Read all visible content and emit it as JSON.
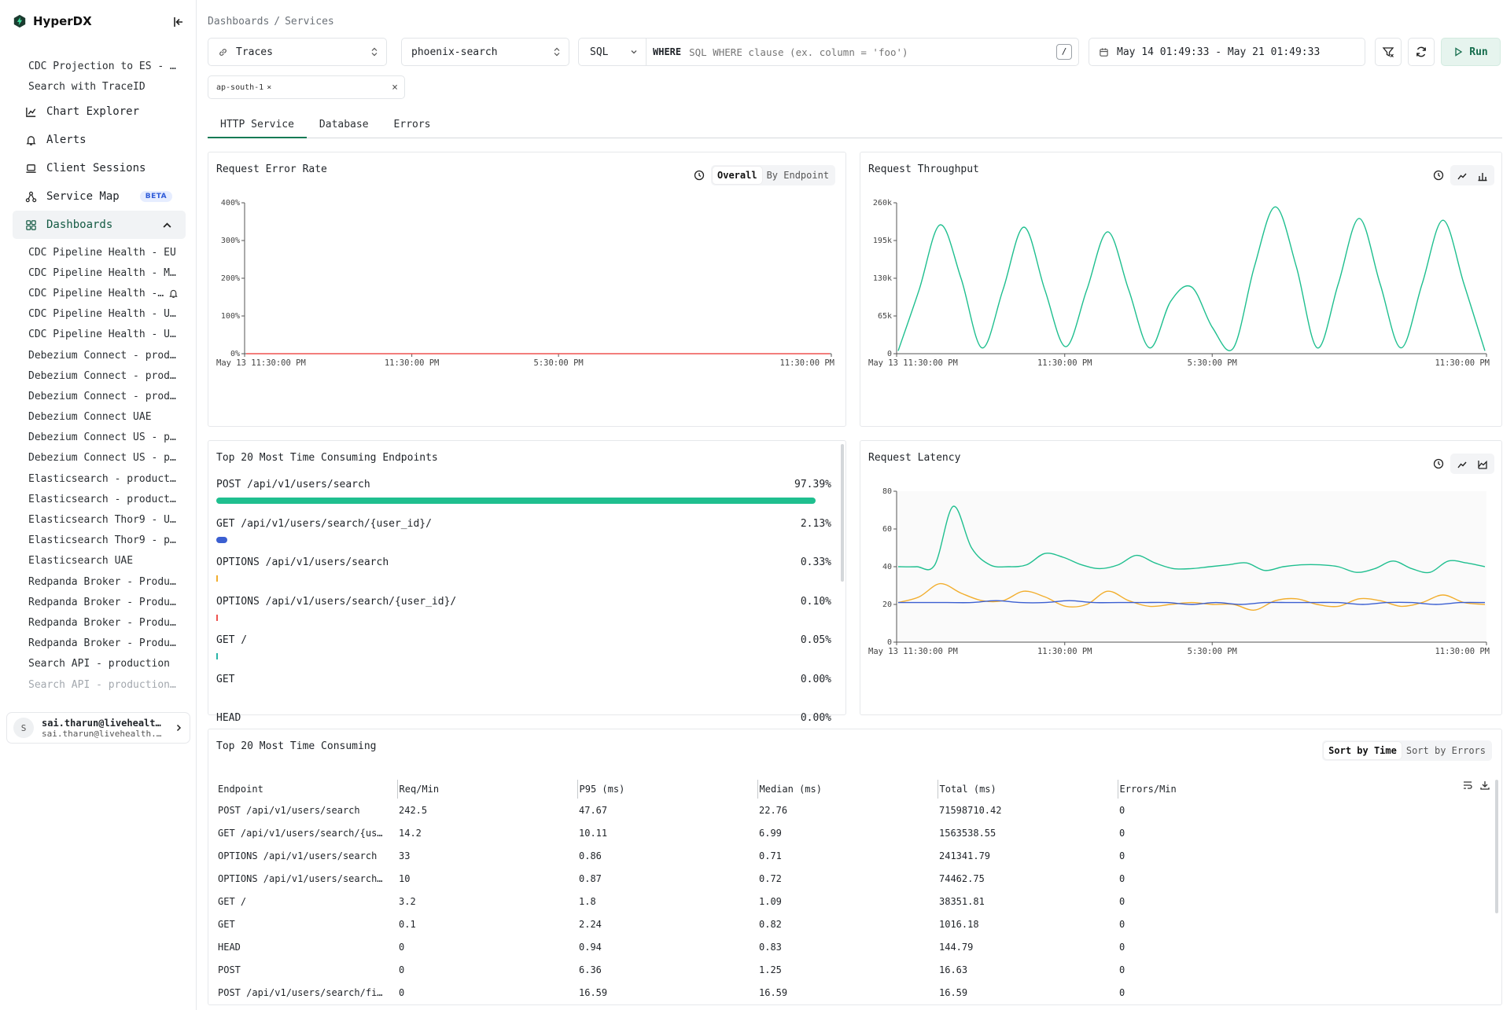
{
  "brand": {
    "name": "HyperDX"
  },
  "sidebar": {
    "saved_searches": [
      "CDC Projection to ES - …",
      "Search with TraceID"
    ],
    "nav": [
      {
        "label": "Chart Explorer",
        "icon": "chart-line-icon"
      },
      {
        "label": "Alerts",
        "icon": "bell-icon"
      },
      {
        "label": "Client Sessions",
        "icon": "laptop-icon"
      },
      {
        "label": "Service Map",
        "icon": "share-nodes-icon",
        "badge": "BETA"
      },
      {
        "label": "Dashboards",
        "icon": "grid-icon",
        "active": true
      }
    ],
    "dashboards": [
      "CDC Pipeline Health - EU",
      "CDC Pipeline Health - M…",
      "CDC Pipeline Health -…",
      "CDC Pipeline Health - U…",
      "CDC Pipeline Health - U…",
      "Debezium Connect - prod…",
      "Debezium Connect - prod…",
      "Debezium Connect - prod…",
      "Debezium Connect UAE",
      "Debezium Connect US - p…",
      "Debezium Connect US - p…",
      "Elasticsearch - product…",
      "Elasticsearch - product…",
      "Elasticsearch Thor9 - U…",
      "Elasticsearch Thor9 - p…",
      "Elasticsearch UAE",
      "Redpanda Broker - Produ…",
      "Redpanda Broker - Produ…",
      "Redpanda Broker - Produ…",
      "Redpanda Broker - Produ…",
      "Search API - production",
      "Search API - production…"
    ],
    "user": {
      "initial": "S",
      "name": "sai.tharun@livehealt…",
      "email": "sai.tharun@livehealth.…"
    }
  },
  "breadcrumb": {
    "root": "Dashboards",
    "sep": "/",
    "current": "Services"
  },
  "toolbar": {
    "source": "Traces",
    "service": "phoenix-search",
    "language": "SQL",
    "where_label": "WHERE",
    "where_placeholder": "SQL WHERE clause (ex. column = 'foo')",
    "slash_hint": "/",
    "date_range": "May 14 01:49:33 - May 21 01:49:33",
    "run_label": "Run",
    "filter_chip": "ap-south-1"
  },
  "tabs": [
    "HTTP Service",
    "Database",
    "Errors"
  ],
  "panels": {
    "error_rate": {
      "title": "Request Error Rate",
      "seg": [
        "Overall",
        "By Endpoint"
      ]
    },
    "throughput": {
      "title": "Request Throughput"
    },
    "endpoints": {
      "title": "Top 20 Most Time Consuming Endpoints"
    },
    "latency": {
      "title": "Request Latency"
    },
    "table": {
      "title": "Top 20 Most Time Consuming",
      "seg": [
        "Sort by Time",
        "Sort by Errors"
      ]
    }
  },
  "colors": {
    "green": "#1fbf8f",
    "blue": "#3b5fd1",
    "orange": "#f2ae2e",
    "red": "#ef5350",
    "teal": "#29b5a8"
  },
  "chart_data": [
    {
      "type": "line",
      "name": "request-error-rate",
      "title": "Request Error Rate",
      "x_ticks": [
        "May 13 11:30:00 PM",
        "11:30:00 PM",
        "5:30:00 PM",
        "11:30:00 PM"
      ],
      "y_ticks": [
        "400%",
        "300%",
        "200%",
        "100%",
        "0%"
      ],
      "ylim": [
        0,
        400
      ],
      "series": [
        {
          "values": [
            0,
            0,
            0,
            0,
            0,
            0,
            0,
            0,
            0,
            0,
            0,
            0,
            0,
            0,
            0,
            0,
            0,
            0,
            0,
            0
          ]
        }
      ]
    },
    {
      "type": "line",
      "name": "request-throughput",
      "title": "Request Throughput",
      "x_ticks": [
        "May 13 11:30:00 PM",
        "11:30:00 PM",
        "5:30:00 PM",
        "11:30:00 PM"
      ],
      "y_ticks": [
        "260k",
        "195k",
        "130k",
        "65k",
        "0"
      ],
      "ylim": [
        0,
        260000
      ],
      "series": [
        {
          "values": [
            5000,
            110000,
            222000,
            130000,
            10000,
            110000,
            218000,
            110000,
            12000,
            110000,
            210000,
            110000,
            10000,
            90000,
            115000,
            45000,
            10000,
            150000,
            253000,
            150000,
            10000,
            120000,
            233000,
            120000,
            10000,
            120000,
            230000,
            120000,
            5000
          ]
        }
      ]
    },
    {
      "type": "line",
      "name": "request-latency",
      "title": "Request Latency",
      "x_ticks": [
        "May 13 11:30:00 PM",
        "11:30:00 PM",
        "5:30:00 PM",
        "11:30:00 PM"
      ],
      "y_ticks": [
        "80",
        "60",
        "40",
        "20",
        "0"
      ],
      "ylim": [
        0,
        80
      ],
      "series": [
        {
          "values": [
            40,
            40,
            41,
            72,
            50,
            41,
            40,
            41,
            47,
            45,
            41,
            39,
            41,
            46,
            42,
            39,
            39,
            40,
            41,
            42,
            38,
            40,
            41,
            41,
            40,
            37,
            39,
            43,
            39,
            37,
            43,
            42,
            40
          ]
        },
        {
          "values": [
            21,
            24,
            31,
            26,
            22,
            22,
            27,
            24,
            19,
            20,
            27,
            22,
            19,
            20,
            21,
            20,
            20,
            17,
            22,
            23,
            20,
            19,
            23,
            22,
            19,
            21,
            25,
            21,
            20
          ]
        },
        {
          "values": [
            21,
            21,
            21,
            21,
            22,
            21,
            21,
            22,
            21,
            21,
            21,
            21,
            20,
            21,
            20,
            21,
            21,
            21,
            21,
            20,
            21,
            21,
            20,
            21,
            21
          ]
        }
      ]
    },
    {
      "type": "bar",
      "name": "top-endpoints",
      "title": "Top 20 Most Time Consuming Endpoints",
      "categories": [
        "POST /api/v1/users/search",
        "GET /api/v1/users/search/{user_id}/",
        "OPTIONS /api/v1/users/search",
        "OPTIONS /api/v1/users/search/{user_id}/",
        "GET /",
        "GET",
        "HEAD"
      ],
      "values": [
        97.39,
        2.13,
        0.33,
        0.1,
        0.05,
        0.0,
        0.0
      ],
      "labels": [
        "97.39%",
        "2.13%",
        "0.33%",
        "0.10%",
        "0.05%",
        "0.00%",
        "0.00%"
      ]
    }
  ],
  "endpoint_table": {
    "columns": [
      "Endpoint",
      "Req/Min",
      "P95 (ms)",
      "Median (ms)",
      "Total (ms)",
      "Errors/Min"
    ],
    "rows": [
      [
        "POST /api/v1/users/search",
        "242.5",
        "47.67",
        "22.76",
        "71598710.42",
        "0"
      ],
      [
        "GET /api/v1/users/search/{us…",
        "14.2",
        "10.11",
        "6.99",
        "1563538.55",
        "0"
      ],
      [
        "OPTIONS /api/v1/users/search",
        "33",
        "0.86",
        "0.71",
        "241341.79",
        "0"
      ],
      [
        "OPTIONS /api/v1/users/search…",
        "10",
        "0.87",
        "0.72",
        "74462.75",
        "0"
      ],
      [
        "GET /",
        "3.2",
        "1.8",
        "1.09",
        "38351.81",
        "0"
      ],
      [
        "GET",
        "0.1",
        "2.24",
        "0.82",
        "1016.18",
        "0"
      ],
      [
        "HEAD",
        "0",
        "0.94",
        "0.83",
        "144.79",
        "0"
      ],
      [
        "POST",
        "0",
        "6.36",
        "1.25",
        "16.63",
        "0"
      ],
      [
        "POST /api/v1/users/search/fi…",
        "0",
        "16.59",
        "16.59",
        "16.59",
        "0"
      ]
    ]
  }
}
